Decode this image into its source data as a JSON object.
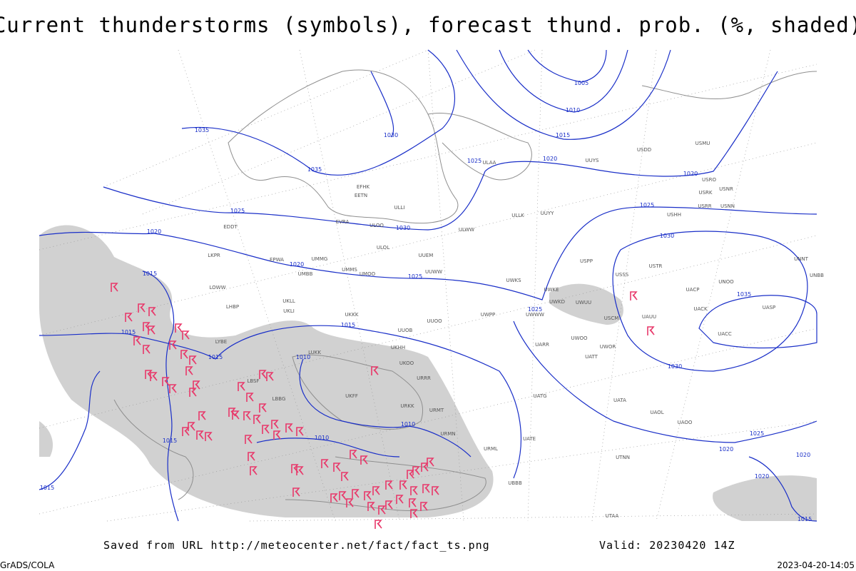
{
  "title": "Current thunderstorms (symbols), forecast thund. prob. (%, shaded)",
  "footer": {
    "source": "Saved from URL http://meteocenter.net/fact/fact_ts.png",
    "valid": "Valid: 20230420 14Z",
    "software": "GrADS/COLA",
    "timestamp": "2023-04-20-14:05"
  },
  "isobar_labels": [
    "1035",
    "1030",
    "1035",
    "1025",
    "1020",
    "1015",
    "1010",
    "1005",
    "1025",
    "1030",
    "1020",
    "1015",
    "1020",
    "1025",
    "1025",
    "1020",
    "1030",
    "1035",
    "1025",
    "1015",
    "1015",
    "1015",
    "1010",
    "1030",
    "1010",
    "1010",
    "1015",
    "1025",
    "1020",
    "1020",
    "1020",
    "1015",
    "1015"
  ],
  "stations": [
    "ULAA",
    "UUYY",
    "ULLK",
    "ULWW",
    "UUEM",
    "UUWW",
    "UMMG",
    "UMMS",
    "UMOO",
    "UMBB",
    "ULOL",
    "UKLL",
    "UKLI",
    "UKKK",
    "UUOB",
    "UUOO",
    "UWPP",
    "UWKS",
    "UWKE",
    "UWKD",
    "UWUU",
    "UWWW",
    "USCM",
    "UAUU",
    "USSS",
    "USTR",
    "UACP",
    "UNOO",
    "UACK",
    "UASP",
    "UACC",
    "UARR",
    "UWOO",
    "UWOR",
    "UATT",
    "UATG",
    "UATA",
    "UAOL",
    "UAOO",
    "UATE",
    "UKOO",
    "UKFF",
    "URRR",
    "URKK",
    "URMT",
    "URMN",
    "URML",
    "UBBB",
    "UTNN",
    "UTAA",
    "USHH",
    "USRR",
    "USNN",
    "USRK",
    "USNR",
    "USRO",
    "USMU",
    "USDD",
    "UUYS",
    "ULOO",
    "EFHK",
    "EETN",
    "ULLI",
    "EVRA",
    "EDDT",
    "LKPR",
    "EPWA",
    "LOWW",
    "LHBP",
    "LYBE",
    "LBSF",
    "LBBG",
    "UKHH",
    "LUKK",
    "USPP",
    "UNNT",
    "UNBB"
  ]
}
